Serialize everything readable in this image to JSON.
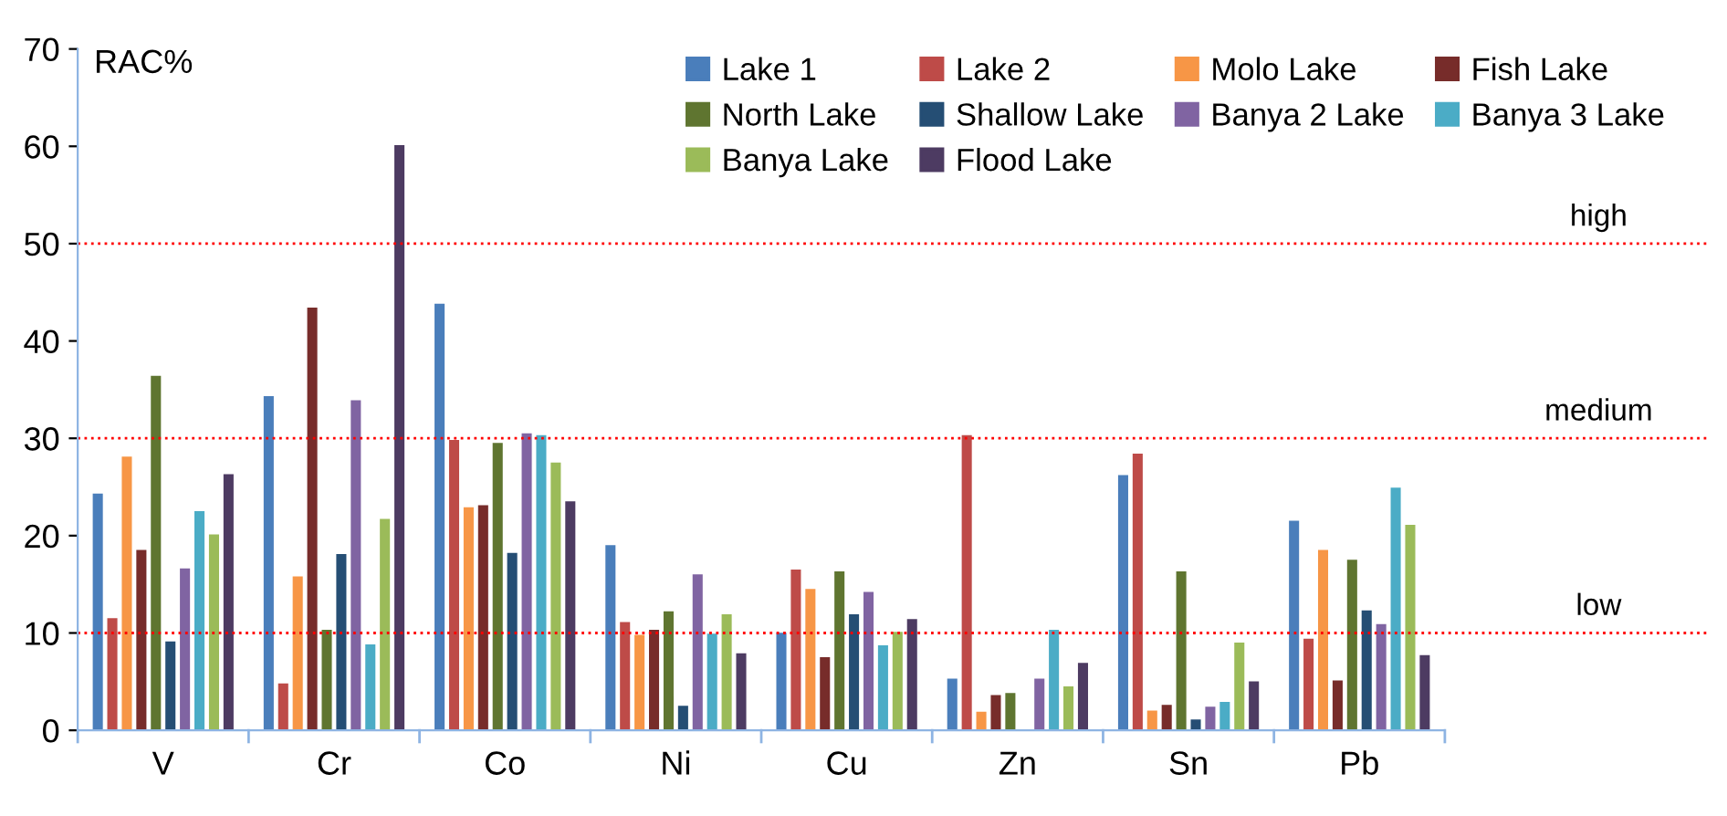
{
  "chart_data": {
    "type": "bar",
    "ylabel": "RAC%",
    "categories": [
      "V",
      "Cr",
      "Co",
      "Ni",
      "Cu",
      "Zn",
      "Sn",
      "Pb"
    ],
    "series": [
      {
        "name": "Lake 1",
        "color": "#4a7ebb",
        "values": [
          24.4,
          34.4,
          43.9,
          19.1,
          10.1,
          5.4,
          26.3,
          21.6
        ]
      },
      {
        "name": "Lake 2",
        "color": "#be4b48",
        "values": [
          11.6,
          4.9,
          29.9,
          11.2,
          16.6,
          30.4,
          28.5,
          9.5
        ]
      },
      {
        "name": "Molo Lake",
        "color": "#f79646",
        "values": [
          28.2,
          15.9,
          23.0,
          9.9,
          14.6,
          2.0,
          2.1,
          18.6
        ]
      },
      {
        "name": "Fish Lake",
        "color": "#772c2a",
        "values": [
          18.6,
          43.5,
          23.2,
          10.4,
          7.6,
          3.7,
          2.7,
          5.2
        ]
      },
      {
        "name": "North Lake",
        "color": "#5f7530",
        "values": [
          36.5,
          10.4,
          29.6,
          12.3,
          16.4,
          3.9,
          16.4,
          17.6
        ]
      },
      {
        "name": "Shallow Lake",
        "color": "#254e74",
        "values": [
          9.2,
          18.2,
          18.3,
          2.6,
          12.0,
          null,
          1.2,
          12.4
        ]
      },
      {
        "name": "Banya 2 Lake",
        "color": "#8064a2",
        "values": [
          16.7,
          34.0,
          30.6,
          16.1,
          14.3,
          5.4,
          2.5,
          11.0
        ]
      },
      {
        "name": "Banya 3 Lake",
        "color": "#4bacc6",
        "values": [
          22.6,
          8.9,
          30.4,
          10.0,
          8.8,
          10.4,
          3.0,
          25.0
        ]
      },
      {
        "name": "Banya Lake",
        "color": "#9bbb59",
        "values": [
          20.2,
          21.8,
          27.6,
          12.0,
          10.2,
          4.6,
          9.1,
          21.2
        ]
      },
      {
        "name": "Flood Lake",
        "color": "#4d3b62",
        "values": [
          26.4,
          60.2,
          23.6,
          8.0,
          11.5,
          7.0,
          5.1,
          7.8
        ]
      }
    ],
    "ylim": [
      0,
      70
    ],
    "yticks": [
      0,
      10,
      20,
      30,
      40,
      50,
      60,
      70
    ],
    "grid": false,
    "legend": "top right",
    "ref_lines": [
      {
        "axis": "y",
        "value": 10,
        "label": "low",
        "color": "#ff0000",
        "line_style": "dotted"
      },
      {
        "axis": "y",
        "value": 30,
        "label": "medium",
        "color": "#ff0000",
        "line_style": "dotted"
      },
      {
        "axis": "y",
        "value": 50,
        "label": "high",
        "color": "#ff0000",
        "line_style": "dotted"
      }
    ]
  }
}
